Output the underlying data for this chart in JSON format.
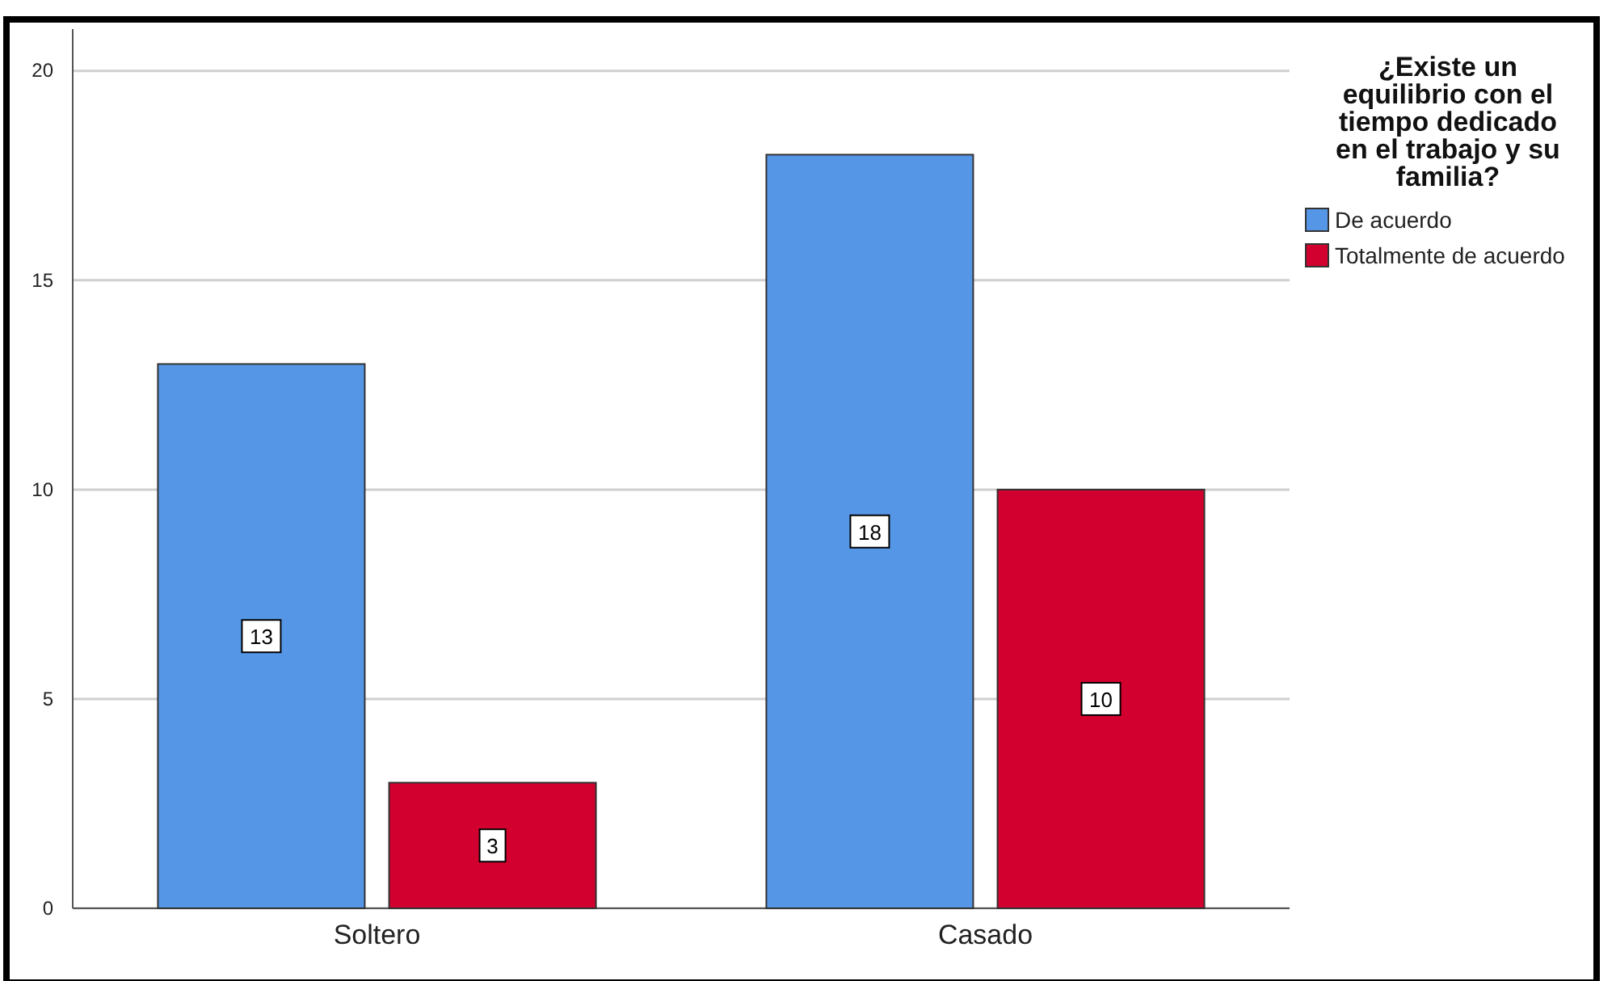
{
  "chart_data": {
    "type": "bar",
    "categories": [
      "Soltero",
      "Casado"
    ],
    "series": [
      {
        "name": "De acuerdo",
        "color": "#5596e6",
        "values": [
          13,
          18
        ]
      },
      {
        "name": "Totalmente de acuerdo",
        "color": "#d2002e",
        "values": [
          3,
          10
        ]
      }
    ],
    "legend_title": "¿Existe un equilibrio con el tiempo dedicado en el trabajo y su familia?",
    "ylim": [
      0,
      21
    ],
    "yticks": [
      0,
      5,
      10,
      15,
      20
    ],
    "grid": "y",
    "legend": "top right",
    "data_labels": true
  }
}
